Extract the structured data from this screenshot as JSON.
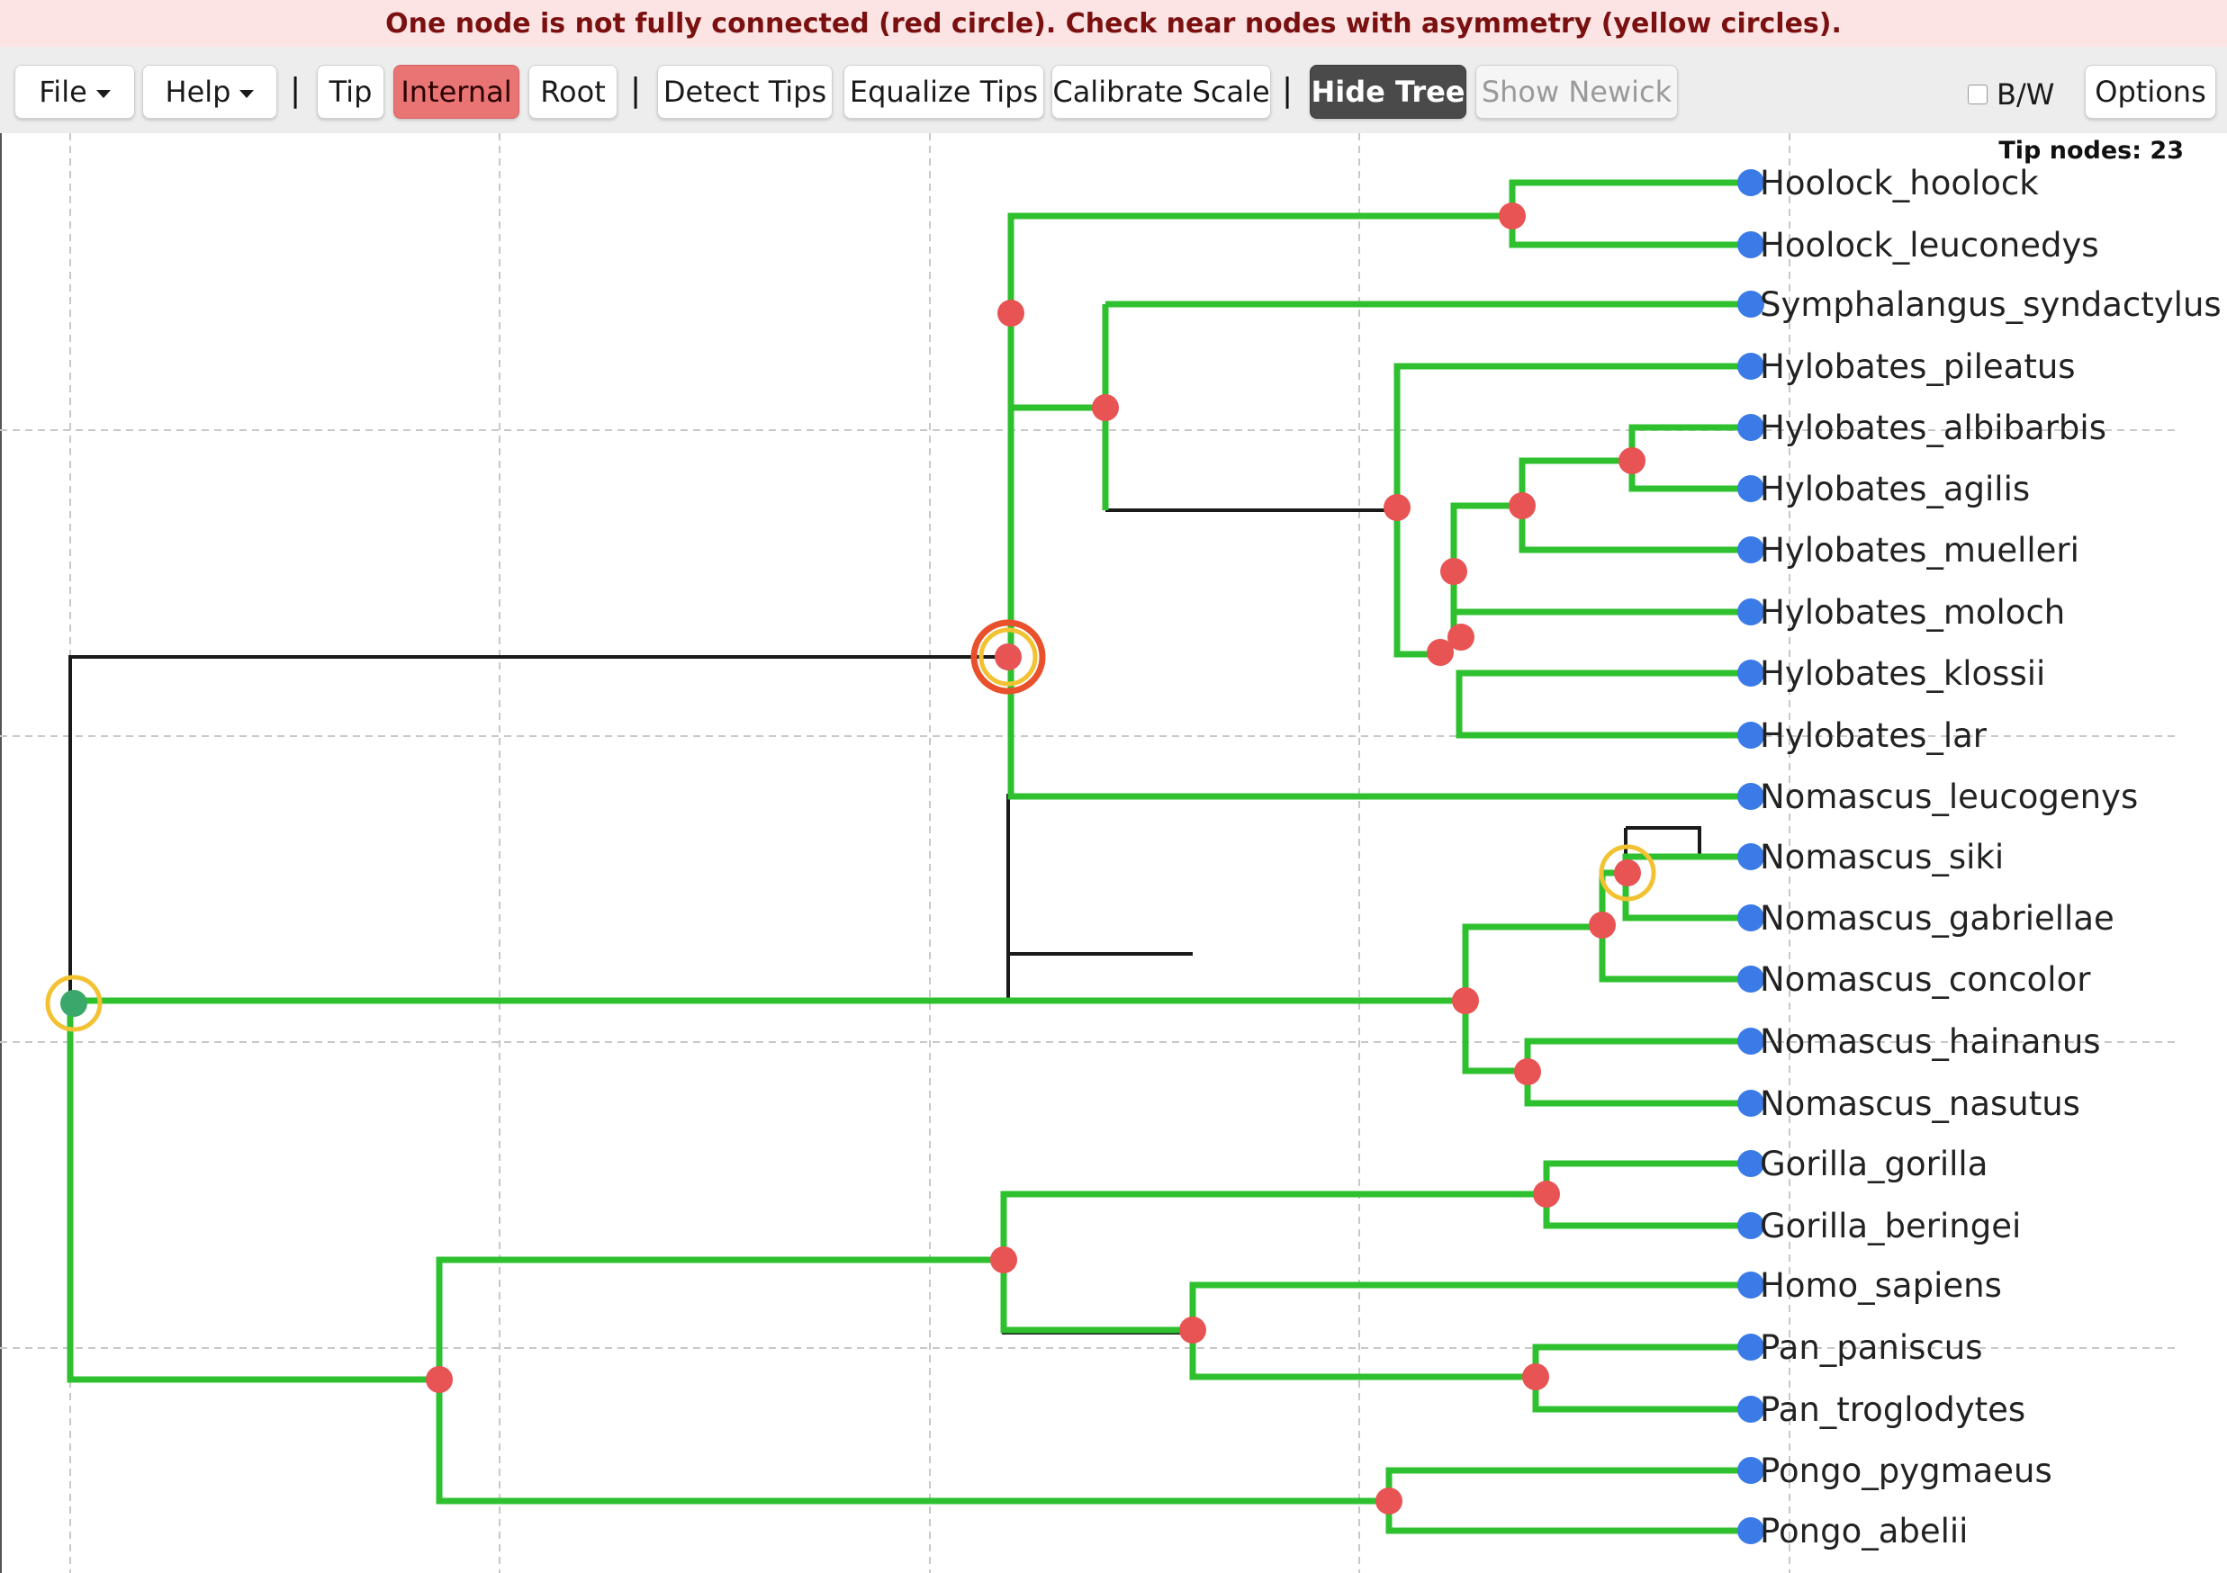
{
  "banner": {
    "message": "One node is not fully connected (red circle). Check near nodes with asymmetry (yellow circles)."
  },
  "toolbar": {
    "file_label": "File",
    "help_label": "Help",
    "tip_label": "Tip",
    "internal_label": "Internal",
    "root_label": "Root",
    "detect_tips_label": "Detect Tips",
    "equalize_tips_label": "Equalize Tips",
    "calibrate_scale_label": "Calibrate Scale",
    "hide_tree_label": "Hide Tree",
    "show_newick_label": "Show Newick",
    "bw_label": "B/W",
    "options_label": "Options",
    "separator": "|"
  },
  "status": {
    "tip_nodes": "Tip nodes: 23"
  },
  "tree": {
    "tips": [
      "Hoolock_hoolock",
      "Hoolock_leuconedys",
      "Symphalangus_syndactylus",
      "Hylobates_pileatus",
      "Hylobates_albibarbis",
      "Hylobates_agilis",
      "Hylobates_muelleri",
      "Hylobates_moloch",
      "Hylobates_klossii",
      "Hylobates_lar",
      "Nomascus_leucogenys",
      "Nomascus_siki",
      "Nomascus_gabriellae",
      "Nomascus_concolor",
      "Nomascus_hainanus",
      "Nomascus_nasutus",
      "Gorilla_gorilla",
      "Gorilla_beringei",
      "Homo_sapiens",
      "Pan_paniscus",
      "Pan_troglodytes",
      "Pongo_pygmaeus",
      "Pongo_abelii"
    ],
    "colors": {
      "branch": "#2ec02e",
      "connector": "#1a1a1a",
      "internal_node": "#e85353",
      "tip_node": "#3b7be8",
      "root_node": "#3aa86a",
      "warning_ring": "#f2c232",
      "error_ring": "#e8512b",
      "grid": "#c8c8c8"
    }
  }
}
